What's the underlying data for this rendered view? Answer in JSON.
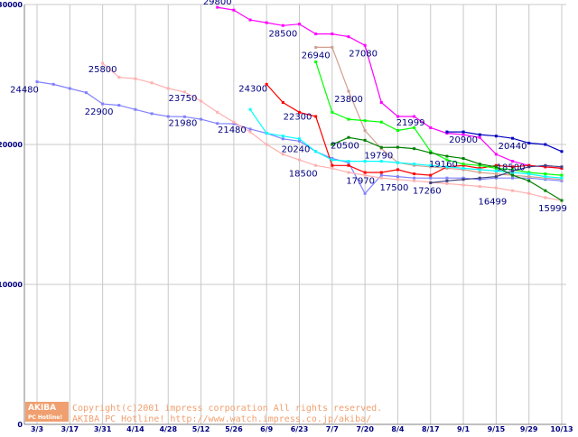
{
  "chart_data": {
    "type": "line",
    "title": "",
    "xlabel": "",
    "ylabel": "",
    "ylim": [
      0,
      30000
    ],
    "yticks": [
      0,
      10000,
      20000,
      30000
    ],
    "ytick_labels": [
      "0",
      "10000",
      "20000",
      "30000"
    ],
    "grid": true,
    "x_unit": "week index (0 = 3/3, 1 = 3/10, ... 32 = 10/13)",
    "xticks": [
      {
        "x": 0,
        "label": "3/3"
      },
      {
        "x": 2,
        "label": "3/17"
      },
      {
        "x": 4,
        "label": "3/31"
      },
      {
        "x": 6,
        "label": "4/14"
      },
      {
        "x": 8,
        "label": "4/28"
      },
      {
        "x": 10,
        "label": "5/12"
      },
      {
        "x": 12,
        "label": "5/26"
      },
      {
        "x": 14,
        "label": "6/9"
      },
      {
        "x": 16,
        "label": "6/23"
      },
      {
        "x": 18,
        "label": "7/7"
      },
      {
        "x": 20,
        "label": "7/20"
      },
      {
        "x": 22,
        "label": "8/4"
      },
      {
        "x": 24,
        "label": "8/17"
      },
      {
        "x": 26,
        "label": "9/1"
      },
      {
        "x": 28,
        "label": "9/15"
      },
      {
        "x": 30,
        "label": "9/29"
      },
      {
        "x": 32,
        "label": "10/13"
      }
    ],
    "series": [
      {
        "name": "series-1",
        "color": "#8080ff",
        "points": [
          [
            0,
            24480
          ],
          [
            1,
            24300
          ],
          [
            2,
            24000
          ],
          [
            3,
            23700
          ],
          [
            4,
            22900
          ],
          [
            5,
            22800
          ],
          [
            6,
            22500
          ],
          [
            7,
            22200
          ],
          [
            8,
            22000
          ],
          [
            9,
            21980
          ],
          [
            10,
            21800
          ],
          [
            11,
            21500
          ],
          [
            12,
            21480
          ],
          [
            13,
            21100
          ],
          [
            14,
            20800
          ],
          [
            15,
            20400
          ],
          [
            16,
            20240
          ],
          [
            17,
            19500
          ],
          [
            18,
            19000
          ],
          [
            19,
            18700
          ],
          [
            20,
            16500
          ],
          [
            21,
            17800
          ],
          [
            22,
            17700
          ],
          [
            23,
            17600
          ],
          [
            24,
            17600
          ],
          [
            25,
            17600
          ],
          [
            26,
            17600
          ],
          [
            27,
            17500
          ],
          [
            28,
            17600
          ],
          [
            29,
            17600
          ],
          [
            30,
            17600
          ],
          [
            31,
            17500
          ],
          [
            32,
            17400
          ]
        ]
      },
      {
        "name": "series-2",
        "color": "#ffb0b0",
        "points": [
          [
            4,
            25800
          ],
          [
            5,
            24800
          ],
          [
            6,
            24700
          ],
          [
            7,
            24400
          ],
          [
            8,
            24000
          ],
          [
            9,
            23750
          ],
          [
            10,
            23100
          ],
          [
            11,
            22300
          ],
          [
            12,
            21600
          ],
          [
            13,
            20900
          ],
          [
            14,
            20000
          ],
          [
            15,
            19300
          ],
          [
            16,
            18900
          ],
          [
            17,
            18500
          ],
          [
            18,
            18300
          ],
          [
            19,
            18000
          ],
          [
            20,
            17800
          ],
          [
            21,
            17600
          ],
          [
            22,
            17500
          ],
          [
            23,
            17400
          ],
          [
            24,
            17300
          ],
          [
            25,
            17200
          ],
          [
            26,
            17100
          ],
          [
            27,
            17000
          ],
          [
            28,
            16900
          ],
          [
            29,
            16700
          ],
          [
            30,
            16500
          ],
          [
            31,
            16200
          ],
          [
            32,
            16000
          ]
        ]
      },
      {
        "name": "series-3",
        "color": "#ff00ff",
        "points": [
          [
            11,
            29800
          ],
          [
            12,
            29600
          ],
          [
            13,
            28900
          ],
          [
            14,
            28700
          ],
          [
            15,
            28500
          ],
          [
            16,
            28600
          ],
          [
            17,
            27900
          ],
          [
            18,
            27900
          ],
          [
            19,
            27700
          ],
          [
            20,
            27080
          ],
          [
            21,
            23000
          ],
          [
            22,
            22000
          ],
          [
            23,
            21999
          ],
          [
            24,
            21200
          ],
          [
            25,
            20800
          ],
          [
            26,
            20700
          ],
          [
            27,
            20500
          ],
          [
            28,
            19300
          ],
          [
            29,
            18800
          ],
          [
            30,
            18500
          ],
          [
            31,
            18400
          ],
          [
            32,
            18300
          ]
        ]
      },
      {
        "name": "series-4",
        "color": "#d0a090",
        "points": [
          [
            17,
            26940
          ],
          [
            18,
            26940
          ],
          [
            19,
            23800
          ],
          [
            20,
            21000
          ],
          [
            21,
            19700
          ],
          [
            22,
            18700
          ],
          [
            23,
            18500
          ],
          [
            24,
            18400
          ],
          [
            25,
            18300
          ],
          [
            26,
            18200
          ],
          [
            27,
            18000
          ],
          [
            28,
            17900
          ],
          [
            29,
            17800
          ],
          [
            30,
            17700
          ],
          [
            31,
            17600
          ],
          [
            32,
            17500
          ]
        ]
      },
      {
        "name": "series-5",
        "color": "#ff0000",
        "points": [
          [
            14,
            24300
          ],
          [
            15,
            23000
          ],
          [
            16,
            22300
          ],
          [
            17,
            22000
          ],
          [
            18,
            18500
          ],
          [
            19,
            18500
          ],
          [
            20,
            18000
          ],
          [
            21,
            18000
          ],
          [
            22,
            18200
          ],
          [
            23,
            17900
          ],
          [
            24,
            17800
          ],
          [
            25,
            18400
          ],
          [
            26,
            18500
          ],
          [
            27,
            18300
          ],
          [
            28,
            18500
          ],
          [
            29,
            18400
          ],
          [
            30,
            18500
          ],
          [
            31,
            18400
          ],
          [
            32,
            18300
          ]
        ]
      },
      {
        "name": "series-6",
        "color": "#00ff00",
        "points": [
          [
            17,
            25900
          ],
          [
            18,
            22300
          ],
          [
            19,
            21800
          ],
          [
            20,
            21700
          ],
          [
            21,
            21600
          ],
          [
            22,
            21000
          ],
          [
            23,
            21200
          ],
          [
            24,
            19500
          ],
          [
            25,
            18900
          ],
          [
            26,
            18600
          ],
          [
            27,
            18500
          ],
          [
            28,
            18300
          ],
          [
            29,
            18200
          ],
          [
            30,
            18000
          ],
          [
            31,
            17900
          ],
          [
            32,
            17800
          ]
        ]
      },
      {
        "name": "series-7",
        "color": "#00ffff",
        "points": [
          [
            13,
            22500
          ],
          [
            14,
            20800
          ],
          [
            15,
            20600
          ],
          [
            16,
            20400
          ],
          [
            17,
            19500
          ],
          [
            18,
            18900
          ],
          [
            19,
            18800
          ],
          [
            20,
            18800
          ],
          [
            21,
            18800
          ],
          [
            22,
            18700
          ],
          [
            23,
            18600
          ],
          [
            24,
            18500
          ],
          [
            25,
            18400
          ],
          [
            26,
            18300
          ],
          [
            27,
            18200
          ],
          [
            28,
            18100
          ],
          [
            29,
            18000
          ],
          [
            30,
            17900
          ],
          [
            31,
            17700
          ],
          [
            32,
            17600
          ]
        ]
      },
      {
        "name": "series-8",
        "color": "#008000",
        "points": [
          [
            18,
            20000
          ],
          [
            19,
            20500
          ],
          [
            20,
            20300
          ],
          [
            21,
            19790
          ],
          [
            22,
            19800
          ],
          [
            23,
            19700
          ],
          [
            24,
            19400
          ],
          [
            25,
            19160
          ],
          [
            26,
            19000
          ],
          [
            27,
            18600
          ],
          [
            28,
            18400
          ],
          [
            29,
            17800
          ],
          [
            30,
            17400
          ],
          [
            31,
            16700
          ],
          [
            32,
            15999
          ]
        ]
      },
      {
        "name": "series-9",
        "color": "#0000c0",
        "points": [
          [
            25,
            20900
          ],
          [
            26,
            20900
          ],
          [
            27,
            20700
          ],
          [
            28,
            20600
          ],
          [
            29,
            20440
          ],
          [
            30,
            20100
          ],
          [
            31,
            20000
          ],
          [
            32,
            19500
          ]
        ]
      },
      {
        "name": "series-10",
        "color": "#404080",
        "points": [
          [
            24,
            17260
          ],
          [
            25,
            17400
          ],
          [
            26,
            17500
          ],
          [
            27,
            17600
          ],
          [
            28,
            17700
          ],
          [
            29,
            18100
          ],
          [
            30,
            18400
          ],
          [
            31,
            18500
          ],
          [
            32,
            18400
          ]
        ]
      }
    ],
    "annotations": [
      {
        "text": "29800",
        "x": 11,
        "y": 29800
      },
      {
        "text": "28500",
        "x": 15,
        "y": 28500
      },
      {
        "text": "26940",
        "x": 17,
        "y": 26940
      },
      {
        "text": "27080",
        "x": 20,
        "y": 27080
      },
      {
        "text": "25800",
        "x": 4,
        "y": 25800
      },
      {
        "text": "24480",
        "x": 0,
        "y": 24480
      },
      {
        "text": "24300",
        "x": 14,
        "y": 24300
      },
      {
        "text": "23800",
        "x": 19,
        "y": 23800
      },
      {
        "text": "23750",
        "x": 9,
        "y": 23750
      },
      {
        "text": "22900",
        "x": 4,
        "y": 22900
      },
      {
        "text": "22300",
        "x": 16,
        "y": 22300
      },
      {
        "text": "21999",
        "x": 23,
        "y": 21999
      },
      {
        "text": "21980",
        "x": 9,
        "y": 21980
      },
      {
        "text": "21480",
        "x": 12,
        "y": 21480
      },
      {
        "text": "20900",
        "x": 26,
        "y": 20900
      },
      {
        "text": "20500",
        "x": 19,
        "y": 20500
      },
      {
        "text": "20440",
        "x": 29,
        "y": 20440
      },
      {
        "text": "20240",
        "x": 16,
        "y": 20240
      },
      {
        "text": "19790",
        "x": 21,
        "y": 19790
      },
      {
        "text": "19160",
        "x": 25,
        "y": 19160
      },
      {
        "text": "18500",
        "x": 17,
        "y": 18500
      },
      {
        "text": "18500",
        "x": 29,
        "y": 18500
      },
      {
        "text": "17970",
        "x": 20,
        "y": 17970
      },
      {
        "text": "17500",
        "x": 22,
        "y": 17500
      },
      {
        "text": "17260",
        "x": 24,
        "y": 17260
      },
      {
        "text": "16499",
        "x": 28,
        "y": 16499
      },
      {
        "text": "15999",
        "x": 32,
        "y": 15999
      }
    ]
  },
  "footer": {
    "logo_top": "AKIBA",
    "logo_bottom": "PC Hotline!",
    "copyright": "Copyright(c)2001 impress corporation All rights reserved.",
    "site": "AKIBA PC Hotline!  http://www.watch.impress.co.jp/akiba/"
  }
}
